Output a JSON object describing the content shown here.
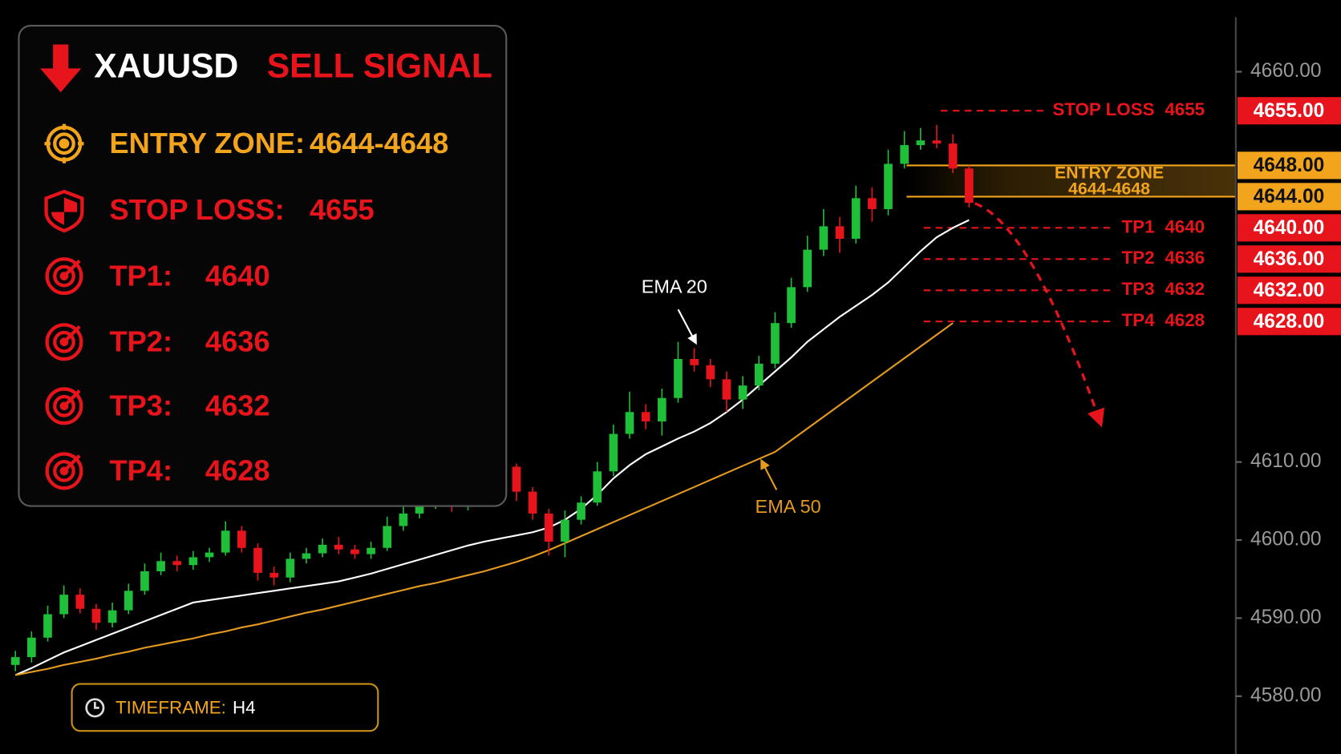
{
  "panel": {
    "ticker": "XAUUSD",
    "signal": "SELL SIGNAL",
    "rows": [
      {
        "label": "ENTRY ZONE:",
        "value": "4644-4648"
      },
      {
        "label": "STOP LOSS:",
        "value": 4655
      },
      {
        "label": "TP1:",
        "value": 4640
      },
      {
        "label": "TP2:",
        "value": 4636
      },
      {
        "label": "TP3:",
        "value": 4632
      },
      {
        "label": "TP4:",
        "value": 4628
      }
    ]
  },
  "timeframe": {
    "label": "TIMEFRAME:",
    "value": "H4"
  },
  "chart_data": {
    "type": "candlestick",
    "up_color": "#1fbf3a",
    "down_color": "#e8141c",
    "ylim": [
      4575,
      4667
    ],
    "yticks": [
      {
        "value": 4660,
        "label": "4660.00"
      },
      {
        "value": 4610,
        "label": "4610.00"
      },
      {
        "value": 4600,
        "label": "4600.00"
      },
      {
        "value": 4590,
        "label": "4590.00"
      },
      {
        "value": 4580,
        "label": "4580.00"
      }
    ],
    "candles": {
      "open": [
        4584.0,
        4585.0,
        4587.5,
        4590.5,
        4593.0,
        4591.2,
        4589.4,
        4591.0,
        4593.5,
        4596.0,
        4597.3,
        4596.8,
        4597.8,
        4598.4,
        4601.2,
        4599.0,
        4595.8,
        4595.2,
        4597.6,
        4598.3,
        4599.4,
        4598.8,
        4598.2,
        4599.0,
        4601.8,
        4603.4,
        4604.6,
        4605.2,
        4604.4,
        4605.8,
        4608.8,
        4609.4,
        4606.2,
        4603.4,
        4599.8,
        4602.6,
        4604.8,
        4608.8,
        4613.6,
        4616.4,
        4615.2,
        4618.2,
        4623.2,
        4622.4,
        4620.6,
        4618.0,
        4619.8,
        4622.6,
        4627.8,
        4632.4,
        4637.2,
        4640.2,
        4638.6,
        4643.8,
        4642.4,
        4648.2,
        4650.6,
        4651.2,
        4650.8,
        4647.6
      ],
      "high": [
        4585.8,
        4588.3,
        4591.6,
        4594.2,
        4593.8,
        4591.8,
        4592.0,
        4594.4,
        4597.0,
        4598.4,
        4598.0,
        4598.6,
        4599.0,
        4602.4,
        4601.8,
        4599.6,
        4596.6,
        4598.4,
        4599.0,
        4600.2,
        4600.4,
        4599.4,
        4599.8,
        4603.0,
        4604.3,
        4605.4,
        4606.0,
        4606.2,
        4606.6,
        4609.6,
        4611.6,
        4609.8,
        4606.8,
        4604.0,
        4603.8,
        4605.6,
        4610.0,
        4614.8,
        4619.0,
        4617.4,
        4619.4,
        4625.4,
        4624.6,
        4623.2,
        4621.6,
        4621.0,
        4623.6,
        4629.2,
        4633.6,
        4639.0,
        4642.4,
        4641.4,
        4645.4,
        4645.2,
        4650.0,
        4652.4,
        4652.8,
        4653.2,
        4652.0,
        4648.0
      ],
      "low": [
        4583.2,
        4584.3,
        4587.0,
        4590.0,
        4590.6,
        4588.5,
        4588.8,
        4590.5,
        4593.0,
        4595.5,
        4596.0,
        4596.2,
        4597.2,
        4598.0,
        4598.4,
        4594.8,
        4594.2,
        4594.6,
        4597.0,
        4597.8,
        4598.2,
        4597.6,
        4597.6,
        4598.6,
        4601.2,
        4602.8,
        4604.0,
        4603.6,
        4603.8,
        4605.4,
        4608.2,
        4605.0,
        4602.6,
        4598.0,
        4597.8,
        4602.0,
        4604.4,
        4608.2,
        4613.0,
        4614.2,
        4613.4,
        4617.6,
        4621.6,
        4619.6,
        4616.4,
        4616.8,
        4619.2,
        4622.0,
        4627.2,
        4631.8,
        4636.4,
        4636.8,
        4638.0,
        4640.8,
        4641.6,
        4647.6,
        4650.0,
        4650.2,
        4647.0,
        4642.6
      ],
      "close": [
        4585.0,
        4587.5,
        4590.5,
        4593.0,
        4591.2,
        4589.4,
        4591.0,
        4593.5,
        4596.0,
        4597.3,
        4596.8,
        4597.8,
        4598.4,
        4601.2,
        4599.0,
        4595.8,
        4595.2,
        4597.6,
        4598.3,
        4599.4,
        4598.8,
        4598.2,
        4599.0,
        4601.8,
        4603.4,
        4604.6,
        4605.2,
        4604.4,
        4605.8,
        4608.8,
        4609.4,
        4606.2,
        4603.4,
        4599.8,
        4602.6,
        4604.8,
        4608.8,
        4613.6,
        4616.4,
        4615.2,
        4618.2,
        4623.2,
        4622.4,
        4620.6,
        4618.0,
        4619.8,
        4622.6,
        4627.8,
        4632.4,
        4637.2,
        4640.2,
        4638.6,
        4643.8,
        4642.4,
        4648.2,
        4650.6,
        4651.2,
        4650.8,
        4647.6,
        4643.2
      ]
    },
    "series": [
      {
        "name": "EMA 20",
        "color": "#ffffff",
        "values": [
          4582.7,
          4583.6,
          4584.6,
          4585.6,
          4586.4,
          4587.2,
          4588.0,
          4588.8,
          4589.6,
          4590.4,
          4591.2,
          4592.0,
          4592.3,
          4592.6,
          4592.9,
          4593.2,
          4593.5,
          4593.8,
          4594.1,
          4594.4,
          4594.7,
          4595.2,
          4595.7,
          4596.3,
          4596.9,
          4597.5,
          4598.1,
          4598.7,
          4599.3,
          4599.8,
          4600.2,
          4600.6,
          4601.0,
          4601.6,
          4602.6,
          4604.0,
          4605.8,
          4607.9,
          4609.6,
          4611.0,
          4612.0,
          4613.0,
          4613.9,
          4615.0,
          4616.4,
          4618.0,
          4619.8,
          4621.6,
          4623.4,
          4625.4,
          4627.0,
          4628.6,
          4630.0,
          4631.4,
          4633.0,
          4635.0,
          4637.0,
          4638.8,
          4640.0,
          4641.0
        ]
      },
      {
        "name": "EMA 50",
        "color": "#e39a1e",
        "values": [
          4582.7,
          4583.1,
          4583.5,
          4584.0,
          4584.4,
          4584.8,
          4585.3,
          4585.7,
          4586.2,
          4586.6,
          4587.0,
          4587.4,
          4587.9,
          4588.3,
          4588.8,
          4589.2,
          4589.7,
          4590.2,
          4590.7,
          4591.1,
          4591.6,
          4592.1,
          4592.6,
          4593.1,
          4593.6,
          4594.1,
          4594.5,
          4595.0,
          4595.5,
          4596.0,
          4596.6,
          4597.2,
          4597.9,
          4598.7,
          4599.6,
          4600.5,
          4601.4,
          4602.3,
          4603.2,
          4604.1,
          4605.0,
          4605.9,
          4606.8,
          4607.7,
          4608.6,
          4609.5,
          4610.4,
          4611.3,
          4612.8,
          4614.3,
          4615.8,
          4617.3,
          4618.8,
          4620.3,
          4621.8,
          4623.3,
          4624.8,
          4626.3,
          4627.8,
          null
        ]
      }
    ],
    "level_color": "#e8141c",
    "levels": [
      {
        "name": "STOP LOSS",
        "value": 4655,
        "tag": "4655.00"
      },
      {
        "name": "TP1",
        "value": 4640,
        "tag": "4640.00"
      },
      {
        "name": "TP2",
        "value": 4636,
        "tag": "4636.00"
      },
      {
        "name": "TP3",
        "value": 4632,
        "tag": "4632.00"
      },
      {
        "name": "TP4",
        "value": 4628,
        "tag": "4628.00"
      }
    ],
    "entry_zone": {
      "name": "ENTRY ZONE",
      "label": "4644-4648",
      "color": "#f2a51c",
      "bounds": [
        {
          "value": 4648,
          "label": "4648.00"
        },
        {
          "value": 4644,
          "label": "4644.00"
        }
      ]
    }
  }
}
